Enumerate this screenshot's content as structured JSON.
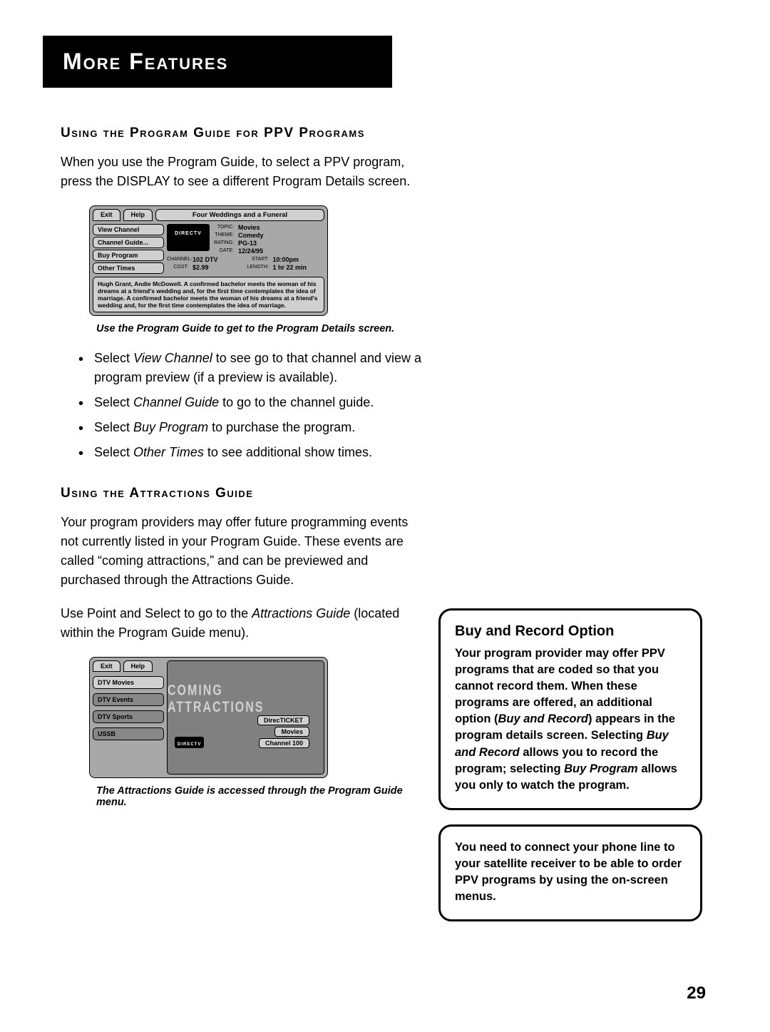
{
  "header": {
    "title": "More Features"
  },
  "section1": {
    "heading": "Using the Program Guide for PPV Programs",
    "intro": "When you use the Program Guide, to select a PPV program, press the DISPLAY to see a different Program Details screen."
  },
  "screenshot1": {
    "exit": "Exit",
    "help": "Help",
    "title": "Four Weddings and a Funeral",
    "menu": [
      "View Channel",
      "Channel Guide...",
      "Buy Program",
      "Other Times"
    ],
    "logo": "DIRECTV",
    "info": {
      "topic_label": "TOPIC:",
      "topic": "Movies",
      "theme_label": "THEME:",
      "theme": "Comedy",
      "rating_label": "RATING:",
      "rating": "PG-13",
      "date_label": "DATE:",
      "date": "12/24/95",
      "channel_label": "CHANNEL:",
      "channel": "102 DTV",
      "start_label": "START:",
      "start": "10:00pm",
      "cost_label": "COST:",
      "cost": "$2.99",
      "length_label": "LENGTH:",
      "length": "1 hr 22 min"
    },
    "description": "Hugh Grant, Andie McDowell. A confirmed bachelor meets the woman of his dreams at a friend's wedding and, for the first time contemplates the idea of marriage. A confirmed bachelor meets the woman of his dreams at a friend's wedding and, for the first time contemplates the idea of marriage."
  },
  "caption1": "Use the Program Guide to get to the Program Details screen.",
  "bullets": [
    {
      "pre": "Select ",
      "em": "View Channel",
      "post": " to see go to that channel and view a program preview (if a preview is available)."
    },
    {
      "pre": "Select ",
      "em": "Channel Guide",
      "post": "  to go to the channel guide."
    },
    {
      "pre": "Select ",
      "em": "Buy Program",
      "post": " to purchase the program."
    },
    {
      "pre": "Select ",
      "em": "Other Times",
      "post": " to see additional show times."
    }
  ],
  "section2": {
    "heading": "Using the Attractions Guide",
    "p1": "Your program providers may offer future programming events not currently listed in your Program Guide. These events are called “coming attractions,” and can be previewed and purchased through the Attractions Guide.",
    "p2_pre": "Use Point and Select to go to the ",
    "p2_em": "Attractions Guide",
    "p2_post": " (located within the Program Guide menu)."
  },
  "screenshot2": {
    "exit": "Exit",
    "help": "Help",
    "menu": [
      "DTV Movies",
      "DTV Events",
      "DTV Sports",
      "USSB"
    ],
    "banner": "COMING ATTRACTIONS",
    "logo": "DIRECTV",
    "chips": [
      "DirecTICKET",
      "Movies",
      "Channel 100"
    ]
  },
  "caption2": "The Attractions Guide is accessed through the Program Guide menu.",
  "callout1": {
    "title": "Buy and Record Option",
    "body_parts": [
      {
        "t": "Your program provider may offer PPV programs that are coded so that you cannot record them. When these programs are offered, an additional option ("
      },
      {
        "t": "Buy and Record",
        "em": true
      },
      {
        "t": ") appears in the program details screen.  Selecting "
      },
      {
        "t": "Buy and Record",
        "em": true
      },
      {
        "t": " allows you to record the program; selecting "
      },
      {
        "t": "Buy Program",
        "em": true
      },
      {
        "t": " allows you only to watch the program."
      }
    ]
  },
  "callout2": {
    "body": "You need to connect your phone line to your satellite receiver to be able to order PPV programs by using the on-screen menus."
  },
  "page_number": "29"
}
